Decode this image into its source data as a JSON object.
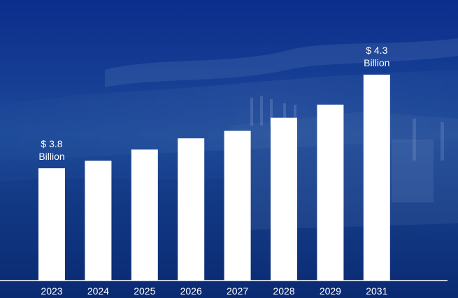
{
  "colors": {
    "background_top": "#0b2d8c",
    "background_mid": "#1d4a99",
    "background_bottom": "#0a2a72",
    "bar": "#ffffff",
    "text": "#ffffff"
  },
  "chart_data": {
    "type": "bar",
    "categories": [
      "2023",
      "2024",
      "2025",
      "2026",
      "2027",
      "2028",
      "2029",
      "2031"
    ],
    "values": [
      3.8,
      3.84,
      3.9,
      3.96,
      4.0,
      4.07,
      4.14,
      4.3
    ],
    "unit": "Billion",
    "currency": "$",
    "title": "",
    "xlabel": "",
    "ylabel": "",
    "ylim": [
      3.2,
      4.3
    ],
    "grid": false,
    "legend": "none",
    "annotations": [
      {
        "index": 0,
        "value_text": "$ 3.8",
        "unit_text": "Billion"
      },
      {
        "index": 7,
        "value_text": "$ 4.3",
        "unit_text": "Billion"
      }
    ]
  }
}
